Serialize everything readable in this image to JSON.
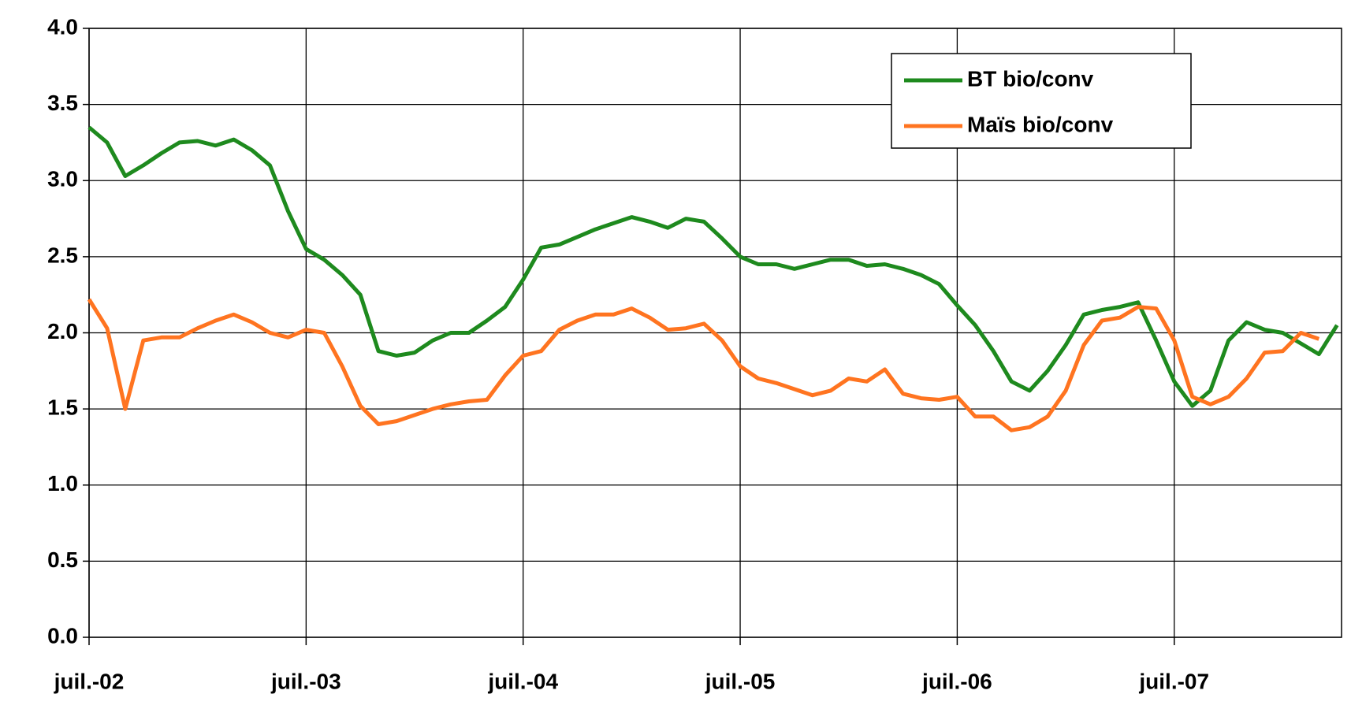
{
  "chart_data": {
    "type": "line",
    "categories": [
      "juil.-02",
      null,
      null,
      null,
      null,
      null,
      null,
      null,
      null,
      null,
      null,
      null,
      "juil.-03",
      null,
      null,
      null,
      null,
      null,
      null,
      null,
      null,
      null,
      null,
      null,
      "juil.-04",
      null,
      null,
      null,
      null,
      null,
      null,
      null,
      null,
      null,
      null,
      null,
      "juil.-05",
      null,
      null,
      null,
      null,
      null,
      null,
      null,
      null,
      null,
      null,
      null,
      "juil.-06",
      null,
      null,
      null,
      null,
      null,
      null,
      null,
      null,
      null,
      null,
      null,
      "juil.-07",
      null,
      null,
      null,
      null,
      null,
      null,
      null,
      null,
      null
    ],
    "series": [
      {
        "name": "BT bio/conv",
        "color": "#1e8a1e",
        "values": [
          3.35,
          3.25,
          3.03,
          3.1,
          3.18,
          3.25,
          3.26,
          3.23,
          3.27,
          3.2,
          3.1,
          2.8,
          2.55,
          2.48,
          2.38,
          2.25,
          1.88,
          1.85,
          1.87,
          1.95,
          2.0,
          2.0,
          2.08,
          2.17,
          2.35,
          2.56,
          2.58,
          2.63,
          2.68,
          2.72,
          2.76,
          2.73,
          2.69,
          2.75,
          2.73,
          2.62,
          2.5,
          2.45,
          2.45,
          2.42,
          2.45,
          2.48,
          2.48,
          2.44,
          2.45,
          2.42,
          2.38,
          2.32,
          2.18,
          2.05,
          1.88,
          1.68,
          1.62,
          1.75,
          1.92,
          2.12,
          2.15,
          2.17,
          2.2,
          1.95,
          1.68,
          1.52,
          1.62,
          1.95,
          2.07,
          2.02,
          2.0,
          1.93,
          1.86,
          2.05
        ]
      },
      {
        "name": "Maïs bio/conv",
        "color": "#ff7420",
        "values": [
          2.22,
          2.03,
          1.5,
          1.95,
          1.97,
          1.97,
          2.03,
          2.08,
          2.12,
          2.07,
          2.0,
          1.97,
          2.02,
          2.0,
          1.78,
          1.52,
          1.4,
          1.42,
          1.46,
          1.5,
          1.53,
          1.55,
          1.56,
          1.72,
          1.85,
          1.88,
          2.02,
          2.08,
          2.12,
          2.12,
          2.16,
          2.1,
          2.02,
          2.03,
          2.06,
          1.95,
          1.78,
          1.7,
          1.67,
          1.63,
          1.59,
          1.62,
          1.7,
          1.68,
          1.76,
          1.6,
          1.57,
          1.56,
          1.58,
          1.45,
          1.45,
          1.36,
          1.38,
          1.45,
          1.62,
          1.92,
          2.08,
          2.1,
          2.17,
          2.16,
          1.95,
          1.58,
          1.53,
          1.58,
          1.7,
          1.87,
          1.88,
          2.0,
          1.96,
          null
        ]
      }
    ],
    "ylim": [
      0,
      4
    ],
    "yticks": [
      {
        "value": 0,
        "label": "0.0"
      },
      0.5,
      {
        "value": 1,
        "label": "1.0"
      },
      1.5,
      {
        "value": 2,
        "label": "2.0"
      },
      2.5,
      {
        "value": 3,
        "label": "3.0"
      },
      3.5,
      {
        "value": 4,
        "label": "4.0"
      }
    ],
    "grid": true,
    "legend": "upper right"
  }
}
